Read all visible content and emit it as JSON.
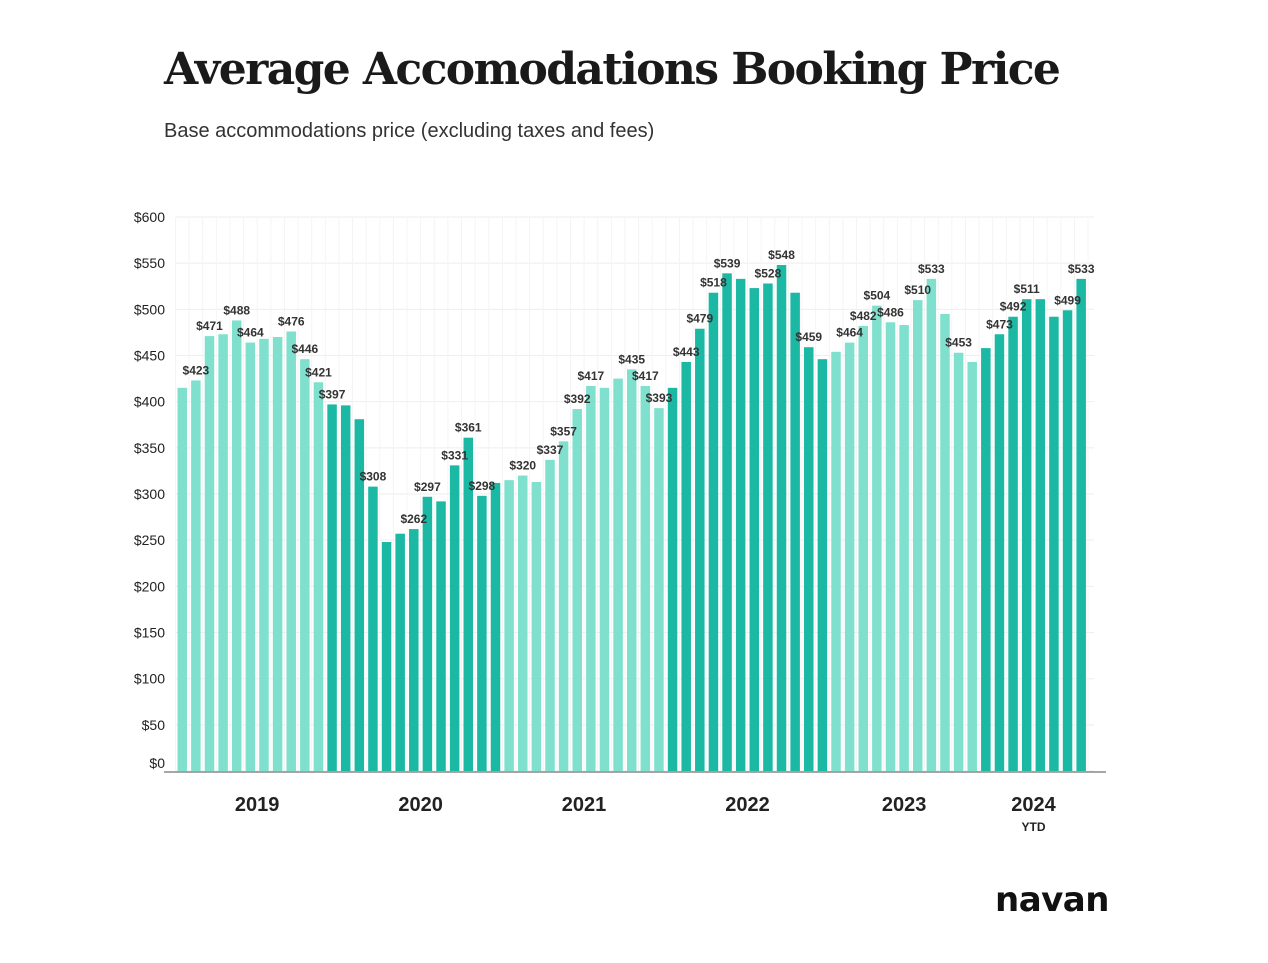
{
  "title": "Average Accomodations Booking Price",
  "subtitle": "Base accommodations price (excluding taxes and fees)",
  "logo": "navan",
  "colors": {
    "light": "#7fe0ce",
    "dark": "#1bb8a3",
    "grid": "#eeeeee",
    "axis": "#888888"
  },
  "chart_data": {
    "type": "bar",
    "title": "Average Accomodations Booking Price",
    "subtitle": "Base accommodations price (excluding taxes and fees)",
    "xlabel": "",
    "ylabel": "",
    "ylim": [
      0,
      600
    ],
    "yticks": [
      0,
      50,
      100,
      150,
      200,
      250,
      300,
      350,
      400,
      450,
      500,
      550,
      600
    ],
    "ytick_labels": [
      "$0",
      "$50",
      "$100",
      "$150",
      "$200",
      "$250",
      "$300",
      "$350",
      "$400",
      "$450",
      "$500",
      "$550",
      "$600"
    ],
    "grid": true,
    "groups": [
      {
        "label": "2019",
        "sublabel": ""
      },
      {
        "label": "2020",
        "sublabel": ""
      },
      {
        "label": "2021",
        "sublabel": ""
      },
      {
        "label": "2022",
        "sublabel": ""
      },
      {
        "label": "2023",
        "sublabel": ""
      },
      {
        "label": "2024",
        "sublabel": "YTD"
      }
    ],
    "values": [
      415,
      423,
      471,
      473,
      488,
      464,
      468,
      470,
      476,
      446,
      421,
      397,
      396,
      381,
      308,
      248,
      257,
      262,
      297,
      292,
      331,
      361,
      298,
      312,
      315,
      320,
      313,
      337,
      357,
      392,
      417,
      415,
      425,
      435,
      417,
      393,
      415,
      443,
      479,
      518,
      539,
      533,
      523,
      528,
      548,
      518,
      459,
      446,
      454,
      464,
      482,
      504,
      486,
      483,
      510,
      533,
      495,
      453,
      443,
      458,
      473,
      492,
      511,
      511,
      492,
      499,
      533
    ],
    "labels": [
      "",
      "$423",
      "$471",
      "",
      "$488",
      "$464",
      "",
      "",
      "$476",
      "$446",
      "$421",
      "$397",
      "",
      "",
      "$308",
      "",
      "",
      "$262",
      "$297",
      "",
      "$331",
      "$361",
      "$298",
      "",
      "",
      "$320",
      "",
      "$337",
      "$357",
      "$392",
      "$417",
      "",
      "",
      "$435",
      "$417",
      "$393",
      "",
      "$443",
      "$479",
      "$518",
      "$539",
      "",
      "",
      "$528",
      "$548",
      "",
      "$459",
      "",
      "",
      "$464",
      "$482",
      "$504",
      "$486",
      "",
      "$510",
      "$533",
      "",
      "$453",
      "",
      "",
      "$473",
      "$492",
      "$511",
      "",
      "",
      "$499",
      "$533"
    ],
    "group_index": [
      0,
      0,
      0,
      0,
      0,
      0,
      0,
      0,
      0,
      0,
      0,
      0,
      1,
      1,
      1,
      1,
      1,
      1,
      1,
      1,
      1,
      1,
      1,
      1,
      2,
      2,
      2,
      2,
      2,
      2,
      2,
      2,
      2,
      2,
      2,
      2,
      3,
      3,
      3,
      3,
      3,
      3,
      3,
      3,
      3,
      3,
      3,
      3,
      4,
      4,
      4,
      4,
      4,
      4,
      4,
      4,
      4,
      4,
      4,
      5,
      5,
      5,
      5,
      5,
      5,
      5,
      5
    ],
    "shade": [
      "light",
      "light",
      "light",
      "light",
      "light",
      "light",
      "light",
      "light",
      "light",
      "light",
      "light",
      "dark",
      "dark",
      "dark",
      "dark",
      "dark",
      "dark",
      "dark",
      "dark",
      "dark",
      "dark",
      "dark",
      "dark",
      "dark",
      "light",
      "light",
      "light",
      "light",
      "light",
      "light",
      "light",
      "light",
      "light",
      "light",
      "light",
      "light",
      "dark",
      "dark",
      "dark",
      "dark",
      "dark",
      "dark",
      "dark",
      "dark",
      "dark",
      "dark",
      "dark",
      "dark",
      "light",
      "light",
      "light",
      "light",
      "light",
      "light",
      "light",
      "light",
      "light",
      "light",
      "light",
      "dark",
      "dark",
      "dark",
      "dark",
      "dark",
      "dark",
      "dark",
      "dark"
    ]
  }
}
